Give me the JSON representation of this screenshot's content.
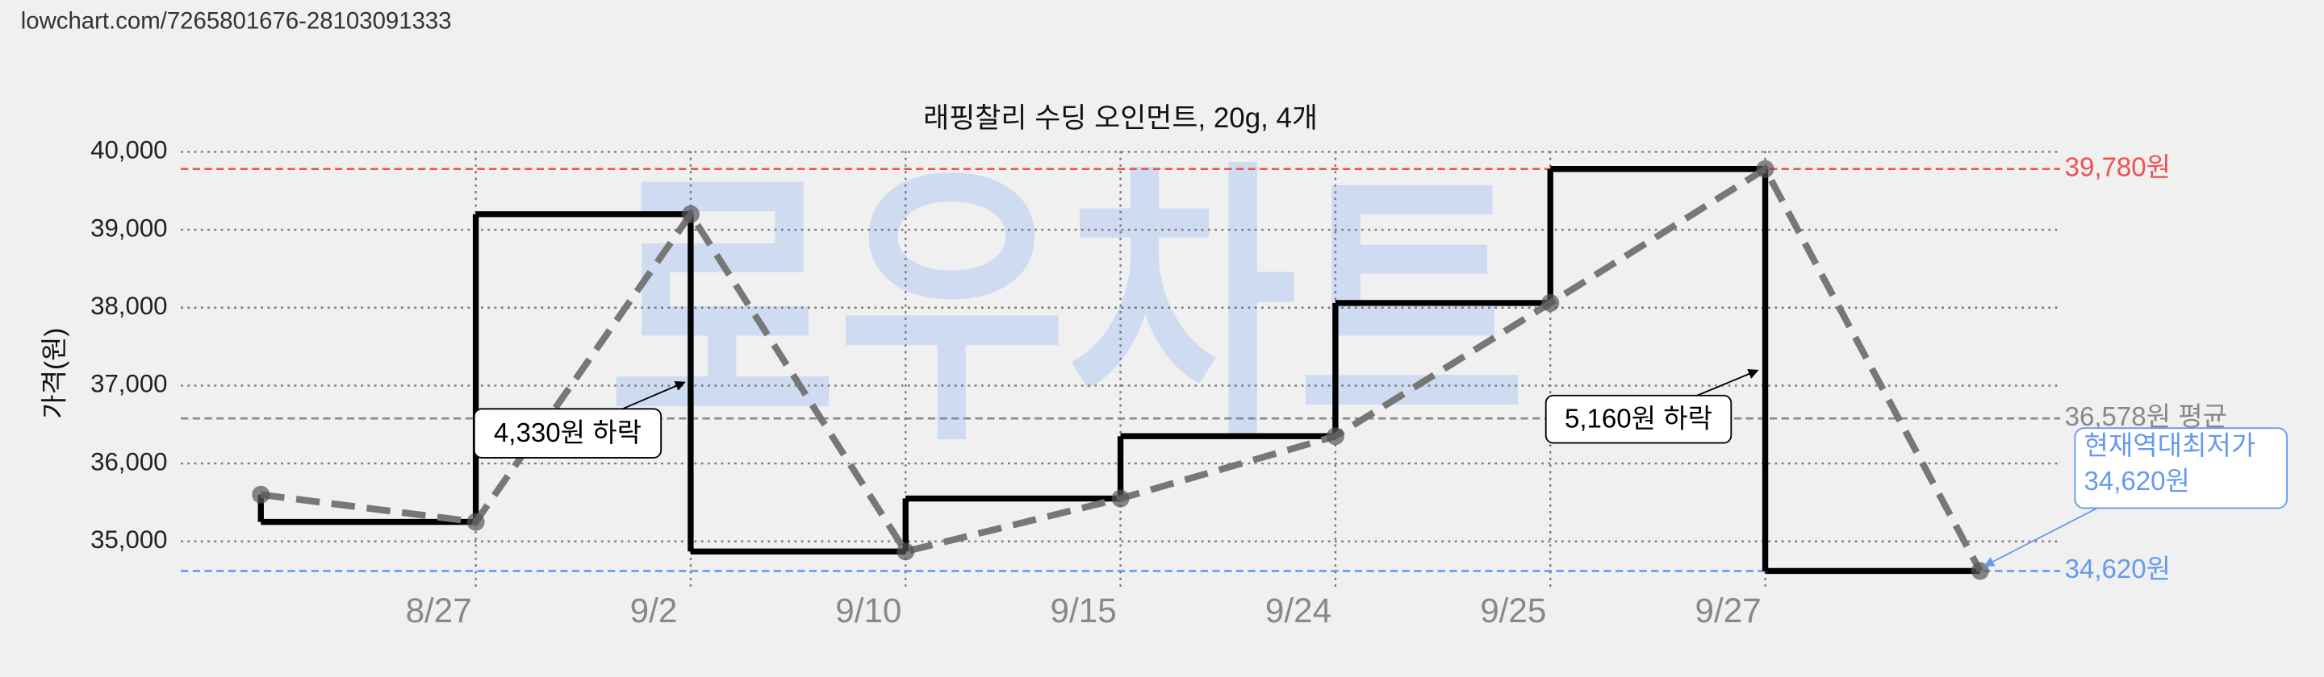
{
  "header": {
    "url": "lowchart.com/7265801676-28103091333"
  },
  "chart_data": {
    "type": "line",
    "title": "래핑찰리 수딩 오인먼트, 20g, 4개",
    "y_label": "가격(원)",
    "watermark": "로우차트",
    "categories": [
      null,
      "8/27",
      "9/2",
      "9/10",
      "9/15",
      "9/24",
      "9/25",
      "9/27",
      null
    ],
    "values": [
      35600,
      35250,
      39200,
      34870,
      35550,
      36350,
      38060,
      39780,
      34620
    ],
    "color": "#777777",
    "step_color": "#000000",
    "ylim": [
      34400,
      40200
    ],
    "yticks": [
      {
        "value": 35000,
        "label": "35,000"
      },
      {
        "value": 36000,
        "label": "36,000"
      },
      {
        "value": 37000,
        "label": "37,000"
      },
      {
        "value": 38000,
        "label": "38,000"
      },
      {
        "value": 39000,
        "label": "39,000"
      },
      {
        "value": 40000,
        "label": "40,000"
      }
    ],
    "grid": true,
    "ref_lines": [
      {
        "value": 39780,
        "label": "39,780원",
        "color": "#f05050"
      },
      {
        "value": 36578,
        "label": "36,578원 평균",
        "color": "#888888"
      },
      {
        "value": 34620,
        "label": "34,620원",
        "color": "#6699ee"
      }
    ],
    "annotations": [
      {
        "text": "4,330원 하락",
        "value": 4330
      },
      {
        "text": "5,160원 하락",
        "value": 5160
      }
    ],
    "current_low": {
      "lines": [
        "현재역대최저가",
        "34,620원"
      ],
      "color": "#6699ee"
    }
  }
}
